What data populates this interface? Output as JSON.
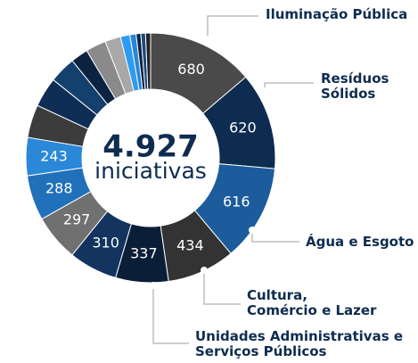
{
  "chart_data": {
    "type": "pie",
    "title": "4.927",
    "subtitle": "iniciativas",
    "categories": [
      "Iluminação Pública",
      "Resíduos\nSólidos",
      "Água e Esgoto",
      "Cultura,\nComércio e Lazer",
      "Unidades Administrativas e\nServiços Públicos",
      null,
      null,
      null,
      null,
      null,
      null,
      null,
      null,
      null,
      null,
      null,
      null,
      null,
      null,
      null
    ],
    "values": [
      680,
      620,
      616,
      434,
      337,
      310,
      297,
      288,
      243,
      210,
      190,
      170,
      110,
      130,
      100,
      60,
      40,
      30,
      30,
      32
    ],
    "value_labels": [
      "680",
      "620",
      "616",
      "434",
      "337",
      "310",
      "297",
      "288",
      "243",
      null,
      null,
      null,
      null,
      null,
      null,
      null,
      null,
      null,
      null,
      null
    ],
    "colors": [
      "#4a4a4a",
      "#0e2c50",
      "#1c5c9c",
      "#333333",
      "#0a1e38",
      "#12345e",
      "#707070",
      "#2070ba",
      "#2b88d8",
      "#3c3c3c",
      "#0f2e55",
      "#14406e",
      "#0b2240",
      "#8a8a8a",
      "#a8a8a8",
      "#2d9cf0",
      "#2b86d6",
      "#0b2240",
      "#1a4a80",
      "#222222"
    ]
  }
}
